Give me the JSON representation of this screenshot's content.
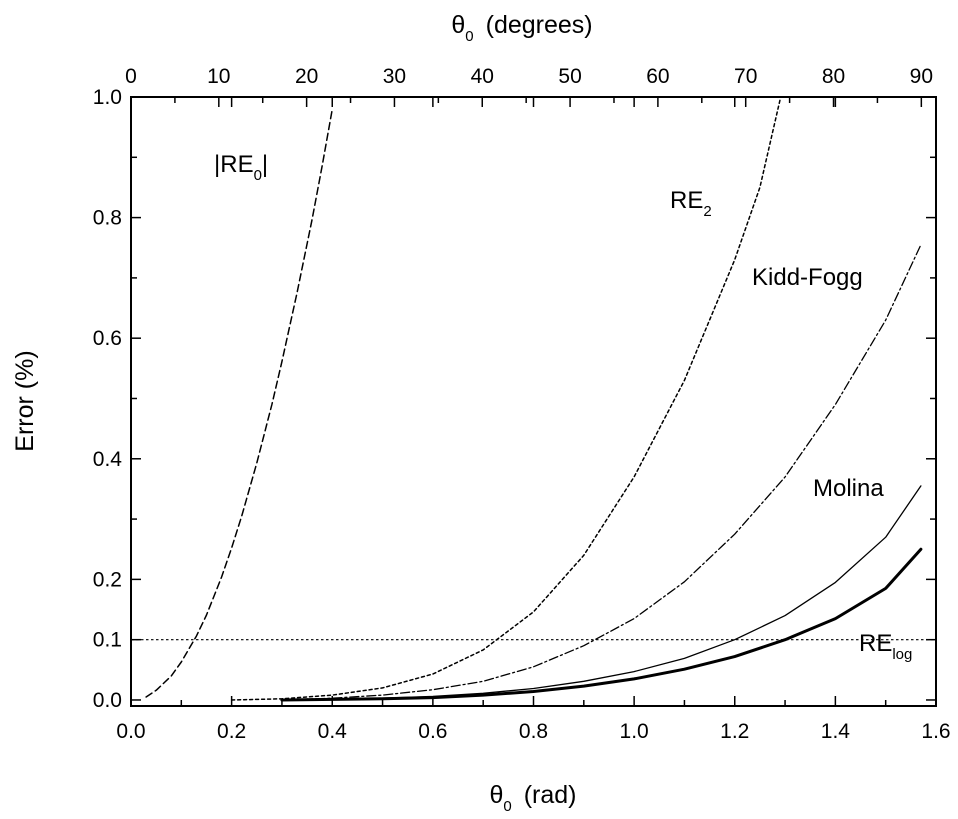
{
  "chart_data": {
    "type": "line",
    "title": "",
    "xlabel": {
      "main": "θ",
      "sub": "0",
      "rest": "(rad)"
    },
    "x2label": {
      "main": "θ",
      "sub": "0",
      "rest": "(degrees)"
    },
    "ylabel": "Error (%)",
    "xlim": [
      0.0,
      1.6
    ],
    "ylim": [
      -0.01,
      1.0
    ],
    "x2lim": [
      0,
      91.67
    ],
    "xticks": [
      "0.0",
      "0.2",
      "0.4",
      "0.6",
      "0.8",
      "1.0",
      "1.2",
      "1.4",
      "1.6"
    ],
    "x2ticks": [
      "0",
      "10",
      "20",
      "30",
      "40",
      "50",
      "60",
      "70",
      "80",
      "90"
    ],
    "yticks": [
      "0.0",
      "0.1",
      "0.2",
      "0.4",
      "0.6",
      "0.8",
      "1.0"
    ],
    "grid": false,
    "legend": "inline curve labels",
    "reference_line": {
      "y": 0.1,
      "style": "dotted"
    },
    "series": [
      {
        "name": "|RE0|",
        "label": {
          "main": "|RE",
          "sub": "0",
          "post": "|"
        },
        "style": "dashed",
        "width": 1.5,
        "x": [
          0.03,
          0.05,
          0.08,
          0.1,
          0.13,
          0.15,
          0.18,
          0.2,
          0.22,
          0.25,
          0.28,
          0.3,
          0.33,
          0.36,
          0.38,
          0.4
        ],
        "y": [
          0.005,
          0.016,
          0.04,
          0.063,
          0.106,
          0.141,
          0.204,
          0.252,
          0.305,
          0.393,
          0.49,
          0.561,
          0.675,
          0.797,
          0.886,
          0.98
        ]
      },
      {
        "name": "RE2",
        "label": {
          "main": "RE",
          "sub": "2",
          "post": ""
        },
        "style": "dotted",
        "width": 1.5,
        "x": [
          0.2,
          0.3,
          0.4,
          0.5,
          0.6,
          0.7,
          0.8,
          0.9,
          1.0,
          1.1,
          1.2,
          1.25,
          1.29
        ],
        "y": [
          0.0,
          0.002,
          0.008,
          0.02,
          0.043,
          0.083,
          0.146,
          0.24,
          0.37,
          0.53,
          0.73,
          0.85,
          0.995
        ]
      },
      {
        "name": "Kidd-Fogg",
        "label": {
          "main": "Kidd-Fogg",
          "sub": "",
          "post": ""
        },
        "style": "dashdot",
        "width": 1.3,
        "x": [
          0.3,
          0.4,
          0.5,
          0.6,
          0.7,
          0.8,
          0.9,
          1.0,
          1.1,
          1.2,
          1.3,
          1.4,
          1.5,
          1.57
        ],
        "y": [
          0.0,
          0.003,
          0.008,
          0.017,
          0.031,
          0.055,
          0.09,
          0.135,
          0.196,
          0.275,
          0.37,
          0.49,
          0.63,
          0.755
        ]
      },
      {
        "name": "Molina",
        "label": {
          "main": "Molina",
          "sub": "",
          "post": ""
        },
        "style": "solid",
        "width": 1.3,
        "x": [
          0.3,
          0.4,
          0.5,
          0.6,
          0.7,
          0.8,
          0.9,
          1.0,
          1.1,
          1.2,
          1.3,
          1.4,
          1.5,
          1.57
        ],
        "y": [
          0.0,
          0.001,
          0.003,
          0.006,
          0.011,
          0.019,
          0.031,
          0.047,
          0.069,
          0.1,
          0.14,
          0.195,
          0.27,
          0.355
        ]
      },
      {
        "name": "RElog",
        "label": {
          "main": "RE",
          "sub": "log",
          "post": ""
        },
        "style": "solid",
        "width": 3,
        "x": [
          0.3,
          0.4,
          0.5,
          0.6,
          0.7,
          0.8,
          0.9,
          1.0,
          1.1,
          1.2,
          1.3,
          1.4,
          1.5,
          1.57
        ],
        "y": [
          0.0,
          0.001,
          0.002,
          0.004,
          0.008,
          0.014,
          0.023,
          0.035,
          0.051,
          0.072,
          0.1,
          0.135,
          0.185,
          0.25
        ]
      }
    ]
  }
}
